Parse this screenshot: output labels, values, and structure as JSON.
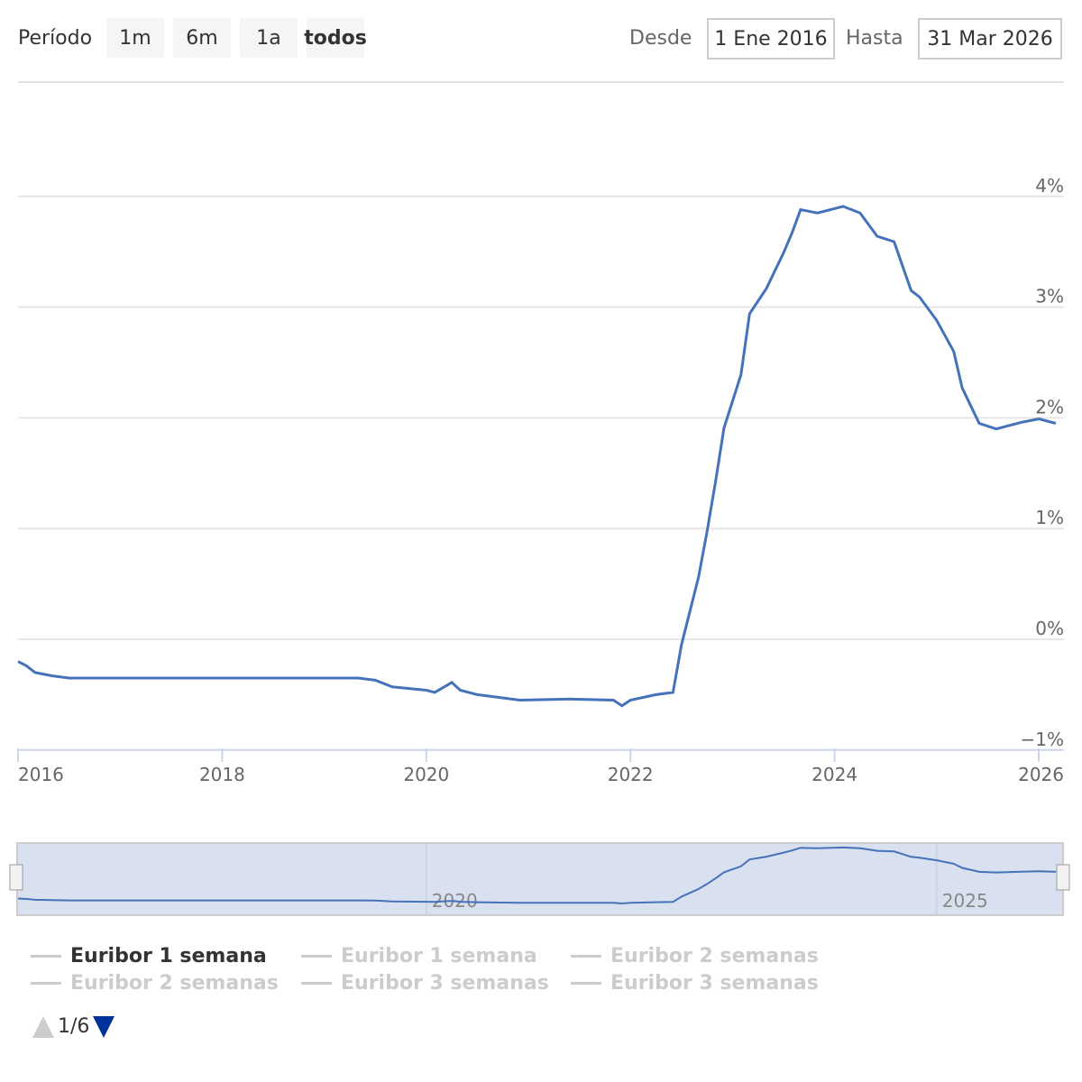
{
  "range_selector": {
    "label": "Período",
    "buttons": [
      "1m",
      "6m",
      "1a",
      "todos"
    ],
    "selected": "todos"
  },
  "input": {
    "from_label": "Desde",
    "from_value": "1 Ene 2016",
    "to_label": "Hasta",
    "to_value": "31 Mar 2026"
  },
  "legend": {
    "items": [
      {
        "label": "Euribor 1 semana",
        "active": true
      },
      {
        "label": "Euribor 1 semana",
        "active": false
      },
      {
        "label": "Euribor 2 semanas",
        "active": false
      },
      {
        "label": "Euribor 2 semanas",
        "active": false
      },
      {
        "label": "Euribor 3 semanas",
        "active": false
      },
      {
        "label": "Euribor 3 semanas",
        "active": false
      }
    ],
    "page": "1/6"
  },
  "colors": {
    "series": "#4572b8",
    "navigator_mask": "#ccd6eb",
    "active_arrow": "#003399",
    "inactive_arrow": "#cccccc"
  },
  "chart_data": {
    "type": "line",
    "x_axis": {
      "type": "datetime",
      "ticks": [
        "2016",
        "2018",
        "2020",
        "2022",
        "2024",
        "2026"
      ],
      "range": [
        "2016-01",
        "2026-03"
      ]
    },
    "y_axis": {
      "ticks": [
        "−1%",
        "0%",
        "1%",
        "2%",
        "3%",
        "4%"
      ],
      "range": [
        -1,
        5
      ],
      "position": "right",
      "unit": "%"
    },
    "grid": true,
    "navigator": {
      "ticks": [
        "2020",
        "2025"
      ]
    },
    "series": [
      {
        "name": "Euribor 1 semana",
        "points": [
          [
            "2016-01",
            -0.2
          ],
          [
            "2016-02",
            -0.24
          ],
          [
            "2016-03",
            -0.3
          ],
          [
            "2016-05",
            -0.33
          ],
          [
            "2016-07",
            -0.35
          ],
          [
            "2017-02",
            -0.35
          ],
          [
            "2018-01",
            -0.35
          ],
          [
            "2019-05",
            -0.35
          ],
          [
            "2019-07",
            -0.37
          ],
          [
            "2019-09",
            -0.43
          ],
          [
            "2020-01",
            -0.46
          ],
          [
            "2020-02",
            -0.48
          ],
          [
            "2020-04",
            -0.39
          ],
          [
            "2020-05",
            -0.46
          ],
          [
            "2020-07",
            -0.5
          ],
          [
            "2020-12",
            -0.55
          ],
          [
            "2021-06",
            -0.54
          ],
          [
            "2021-11",
            -0.55
          ],
          [
            "2021-12",
            -0.6
          ],
          [
            "2022-01",
            -0.55
          ],
          [
            "2022-04",
            -0.5
          ],
          [
            "2022-06",
            -0.48
          ],
          [
            "2022-07",
            -0.05
          ],
          [
            "2022-09",
            0.56
          ],
          [
            "2022-10",
            0.97
          ],
          [
            "2022-11",
            1.42
          ],
          [
            "2022-12",
            1.91
          ],
          [
            "2023-02",
            2.39
          ],
          [
            "2023-03",
            2.94
          ],
          [
            "2023-05",
            3.17
          ],
          [
            "2023-07",
            3.49
          ],
          [
            "2023-08",
            3.67
          ],
          [
            "2023-09",
            3.88
          ],
          [
            "2023-11",
            3.85
          ],
          [
            "2024-02",
            3.91
          ],
          [
            "2024-04",
            3.85
          ],
          [
            "2024-06",
            3.64
          ],
          [
            "2024-08",
            3.59
          ],
          [
            "2024-10",
            3.15
          ],
          [
            "2024-11",
            3.09
          ],
          [
            "2025-01",
            2.88
          ],
          [
            "2025-03",
            2.6
          ],
          [
            "2025-04",
            2.27
          ],
          [
            "2025-06",
            1.95
          ],
          [
            "2025-08",
            1.9
          ],
          [
            "2025-11",
            1.96
          ],
          [
            "2026-01",
            1.99
          ],
          [
            "2026-03",
            1.95
          ]
        ]
      }
    ]
  }
}
